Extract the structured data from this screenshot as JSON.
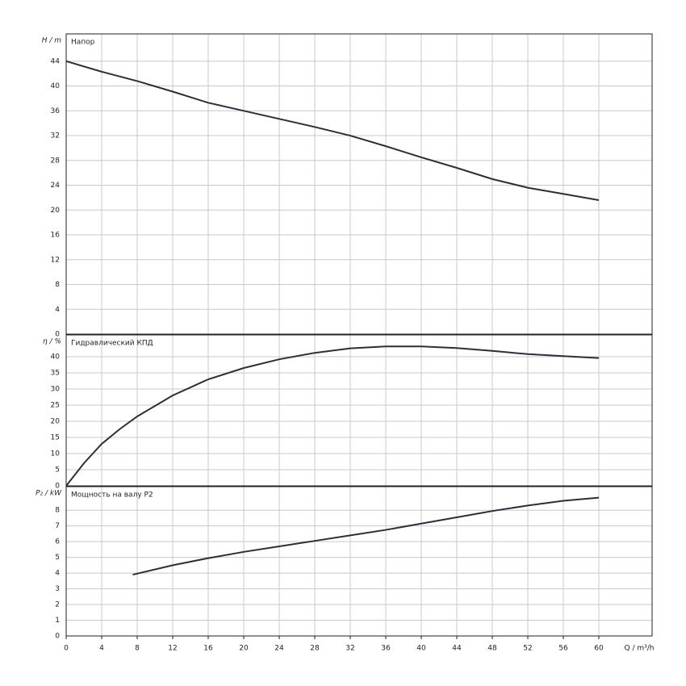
{
  "chart_data": [
    {
      "type": "line",
      "title": "Напор",
      "ylabel": "H / m",
      "color": "#2b2f3a",
      "grid": true,
      "xlim": [
        0,
        66
      ],
      "ylim": [
        0,
        48.4
      ],
      "yticks": [
        0,
        4,
        8,
        12,
        16,
        20,
        24,
        28,
        32,
        36,
        40,
        44
      ],
      "x": [
        0,
        4,
        8,
        12,
        16,
        20,
        24,
        28,
        32,
        36,
        40,
        44,
        48,
        52,
        56,
        60
      ],
      "values": [
        44,
        42.3,
        40.8,
        39.1,
        37.3,
        36.0,
        34.7,
        33.4,
        32.0,
        30.3,
        28.5,
        26.8,
        25.0,
        23.6,
        22.6,
        21.6
      ]
    },
    {
      "type": "line",
      "title": "Гидравлический КПД",
      "ylabel": "η / %",
      "color": "#2b2f3a",
      "grid": true,
      "xlim": [
        0,
        66
      ],
      "ylim": [
        0,
        46.75
      ],
      "yticks": [
        0,
        5,
        10,
        15,
        20,
        25,
        30,
        35,
        40
      ],
      "x": [
        0,
        2,
        4,
        6,
        8,
        12,
        16,
        20,
        24,
        28,
        32,
        36,
        40,
        44,
        48,
        52,
        56,
        60
      ],
      "values": [
        0,
        7,
        13,
        17.5,
        21.5,
        28,
        33,
        36.5,
        39.2,
        41.2,
        42.6,
        43.2,
        43.2,
        42.7,
        41.8,
        40.8,
        40.2,
        39.6
      ]
    },
    {
      "type": "line",
      "title": "Мощность на валу P2",
      "ylabel": "P₂ / kW",
      "xlabel": "Q / m³/h",
      "color": "#2b2f3a",
      "grid": true,
      "xlim": [
        0,
        66
      ],
      "xticks": [
        0,
        4,
        8,
        12,
        16,
        20,
        24,
        28,
        32,
        36,
        40,
        44,
        48,
        52,
        56,
        60
      ],
      "ylim": [
        0,
        9.5
      ],
      "yticks": [
        0,
        1,
        2,
        3,
        4,
        5,
        6,
        7,
        8
      ],
      "x": [
        7.5,
        12,
        16,
        20,
        24,
        28,
        32,
        36,
        40,
        44,
        48,
        52,
        56,
        60
      ],
      "values": [
        3.9,
        4.5,
        4.95,
        5.35,
        5.7,
        6.05,
        6.4,
        6.75,
        7.15,
        7.55,
        7.95,
        8.3,
        8.6,
        8.8
      ]
    }
  ]
}
